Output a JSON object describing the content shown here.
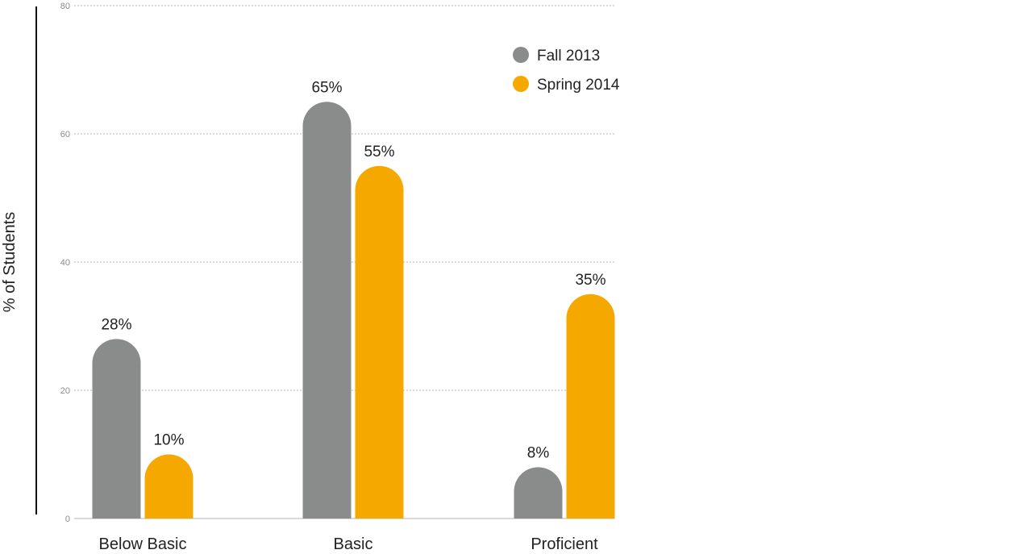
{
  "chart_data": {
    "type": "bar",
    "title": "",
    "xlabel": "",
    "ylabel": "% of Students",
    "ylim": [
      0,
      80
    ],
    "yticks": [
      0,
      20,
      40,
      60,
      80
    ],
    "grid": true,
    "legend_position": "top-right",
    "categories": [
      "Below Basic",
      "Basic",
      "Proficient"
    ],
    "series": [
      {
        "name": "Fall 2013",
        "color": "#898c8b",
        "values": [
          28,
          65,
          8
        ],
        "labels": [
          "28%",
          "65%",
          "8%"
        ]
      },
      {
        "name": "Spring 2014",
        "color": "#f5a800",
        "values": [
          10,
          55,
          35
        ],
        "labels": [
          "10%",
          "55%",
          "35%"
        ]
      }
    ]
  }
}
